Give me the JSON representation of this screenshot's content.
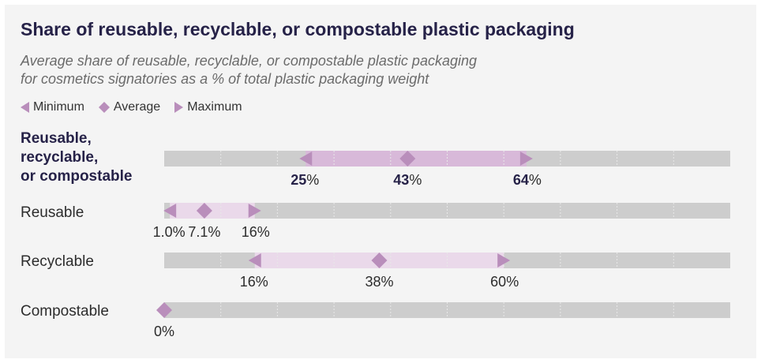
{
  "title": "Share of reusable, recyclable, or compostable plastic packaging",
  "subtitle_line1": "Average share of reusable, recyclable, or compostable plastic packaging",
  "subtitle_line2": "for cosmetics signatories as a % of total plastic packaging weight",
  "legend": {
    "minimum": "Minimum",
    "average": "Average",
    "maximum": "Maximum"
  },
  "colors": {
    "track": "#cdcdcd",
    "range": "#ead9ea",
    "range_bold": "#d8b9d9",
    "marker": "#b98ebb",
    "grid": "#e8e8e8"
  },
  "chart_data": {
    "type": "range-dot",
    "title": "Share of reusable, recyclable, or compostable plastic packaging",
    "xlim": [
      0,
      100
    ],
    "unit": "%",
    "rows": [
      {
        "label_lines": [
          "Reusable,",
          "recyclable,",
          "or compostable"
        ],
        "bold": true,
        "min": 25,
        "avg": 43,
        "max": 64,
        "labels": [
          "25",
          "43",
          "64"
        ],
        "suffix": "%"
      },
      {
        "label_lines": [
          "Reusable"
        ],
        "bold": false,
        "min": 1.0,
        "avg": 7.1,
        "max": 16,
        "labels": [
          "1.0%",
          "7.1%",
          "16%"
        ],
        "suffix": ""
      },
      {
        "label_lines": [
          "Recyclable"
        ],
        "bold": false,
        "min": 16,
        "avg": 38,
        "max": 60,
        "labels": [
          "16%",
          "38%",
          "60%"
        ],
        "suffix": ""
      },
      {
        "label_lines": [
          "Compostable"
        ],
        "bold": false,
        "min": 0,
        "avg": 0,
        "max": 0,
        "labels": [
          "0%"
        ],
        "suffix": ""
      }
    ]
  }
}
